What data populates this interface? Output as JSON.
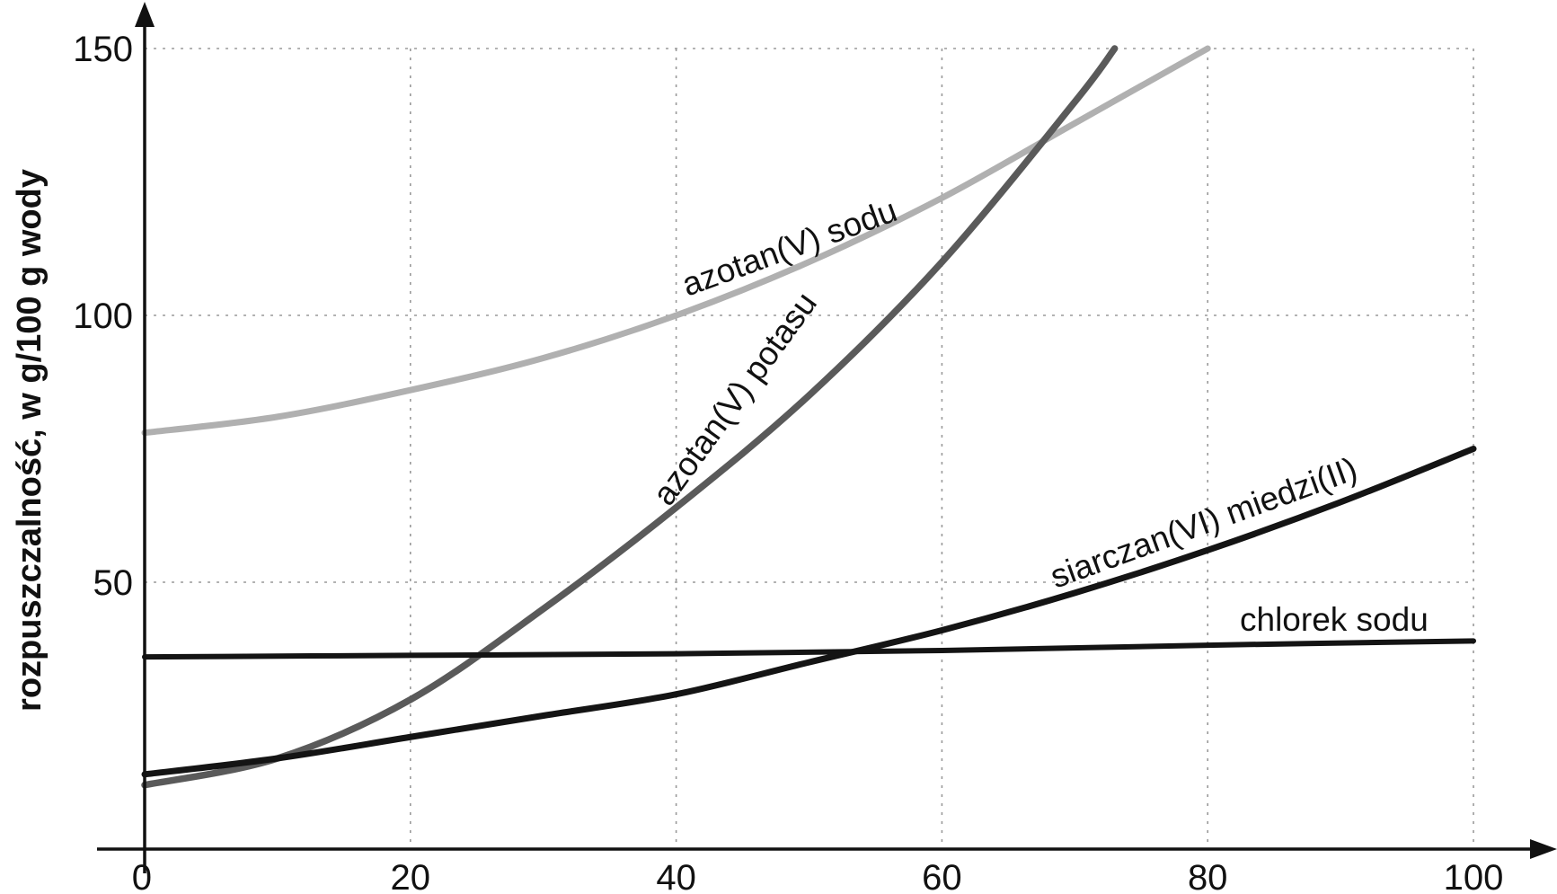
{
  "chart_data": {
    "type": "line",
    "title": "",
    "xlabel": "",
    "ylabel": "rozpuszczalność,  w g/100 g wody",
    "xlim": [
      0,
      100
    ],
    "ylim": [
      0,
      150
    ],
    "x_ticks": [
      "0",
      "20",
      "40",
      "60",
      "80",
      "100"
    ],
    "y_ticks": [
      "50",
      "100",
      "150"
    ],
    "grid": true,
    "series": [
      {
        "name": "azotan(V) sodu",
        "color": "#b0b0b0",
        "points": [
          [
            0,
            78
          ],
          [
            10,
            81
          ],
          [
            20,
            86
          ],
          [
            30,
            92
          ],
          [
            40,
            100
          ],
          [
            50,
            110
          ],
          [
            60,
            122
          ],
          [
            70,
            136
          ],
          [
            80,
            150
          ]
        ]
      },
      {
        "name": "azotan(V) potasu",
        "color": "#5a5a5a",
        "points": [
          [
            0,
            12
          ],
          [
            10,
            17
          ],
          [
            20,
            28
          ],
          [
            30,
            45
          ],
          [
            40,
            64
          ],
          [
            50,
            85
          ],
          [
            60,
            110
          ],
          [
            70,
            140
          ],
          [
            73,
            150
          ]
        ]
      },
      {
        "name": "siarczan(VI) miedzi(II)",
        "color": "#141414",
        "points": [
          [
            0,
            14
          ],
          [
            10,
            17
          ],
          [
            20,
            21
          ],
          [
            30,
            25
          ],
          [
            40,
            29
          ],
          [
            50,
            35
          ],
          [
            60,
            41
          ],
          [
            70,
            48
          ],
          [
            80,
            56
          ],
          [
            90,
            65
          ],
          [
            100,
            75
          ]
        ]
      },
      {
        "name": "chlorek sodu",
        "color": "#141414",
        "points": [
          [
            0,
            36
          ],
          [
            20,
            36.3
          ],
          [
            40,
            36.6
          ],
          [
            60,
            37.2
          ],
          [
            80,
            38.2
          ],
          [
            100,
            39
          ]
        ]
      }
    ]
  }
}
